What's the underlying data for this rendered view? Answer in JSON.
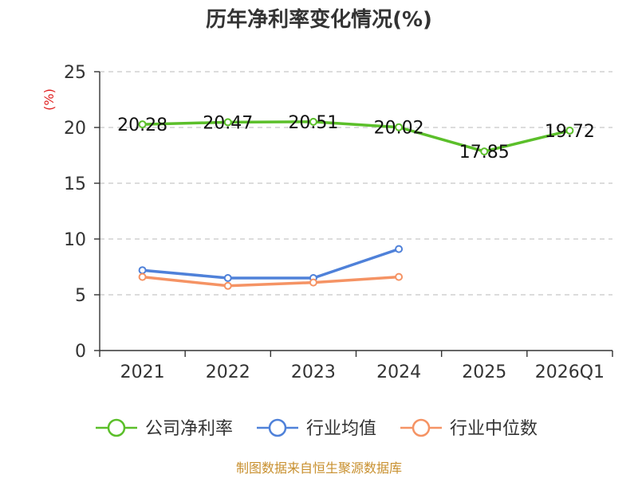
{
  "chart_data": {
    "type": "line",
    "title": "历年净利率变化情况(%)",
    "xlabel": "",
    "ylabel": "(%)",
    "ylim": [
      0,
      25
    ],
    "yticks": [
      0,
      5,
      10,
      15,
      20,
      25
    ],
    "grid": true,
    "legend_position": "bottom",
    "categories": [
      "2021",
      "2022",
      "2023",
      "2024",
      "2025",
      "2026Q1"
    ],
    "series": [
      {
        "name": "公司净利率",
        "color": "#5bbf2a",
        "values": [
          20.28,
          20.47,
          20.51,
          20.02,
          17.85,
          19.72
        ],
        "show_labels": true
      },
      {
        "name": "行业均值",
        "color": "#4f81d9",
        "values": [
          7.2,
          6.5,
          6.5,
          9.1,
          null,
          null
        ],
        "show_labels": false
      },
      {
        "name": "行业中位数",
        "color": "#f59364",
        "values": [
          6.6,
          5.8,
          6.1,
          6.6,
          null,
          null
        ],
        "show_labels": false
      }
    ]
  },
  "footer": "制图数据来自恒生聚源数据库"
}
